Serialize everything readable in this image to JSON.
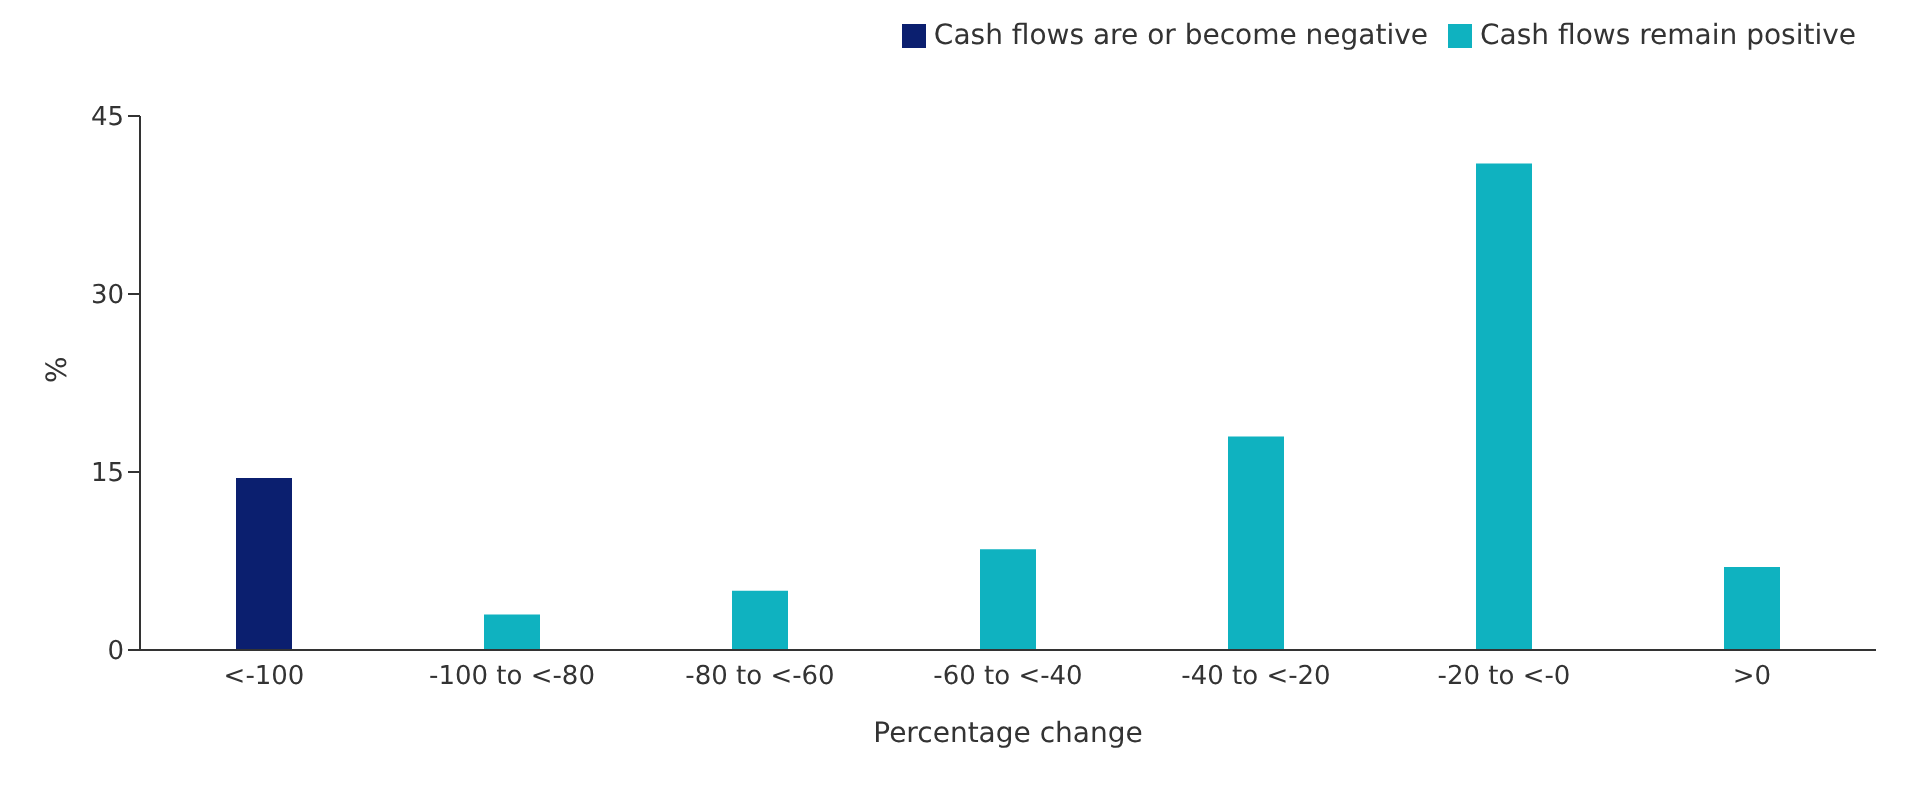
{
  "chart_data": {
    "type": "bar",
    "xlabel": "Percentage change",
    "ylabel": "%",
    "categories": [
      "<-100",
      "-100 to <-80",
      "-80 to <-60",
      "-60 to <-40",
      "-40 to <-20",
      "-20 to <-0",
      ">0"
    ],
    "series": [
      {
        "name": "Cash flows are or become negative",
        "color": "#0b1f6f",
        "values": [
          14.5,
          null,
          null,
          null,
          null,
          null,
          null
        ]
      },
      {
        "name": "Cash flows remain positive",
        "color": "#0fb2c0",
        "values": [
          null,
          3,
          5,
          8.5,
          18,
          41,
          7
        ]
      }
    ],
    "stacked": true,
    "ylim": [
      0,
      45
    ],
    "yticks": [
      0,
      15,
      30,
      45
    ],
    "grid": false,
    "legend": "top right"
  }
}
